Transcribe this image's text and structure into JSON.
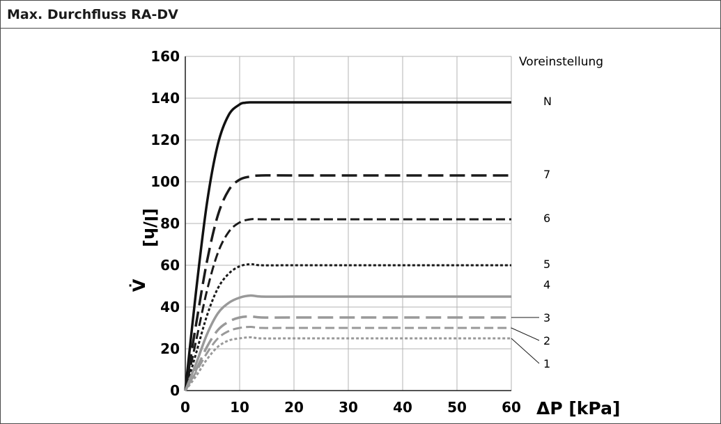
{
  "title": "Max. Durchfluss RA-DV",
  "chart_data": {
    "type": "line",
    "xlabel": "ΔP [kPa]",
    "ylabel_symbol": "V̇",
    "ylabel_unit": "[l/h]",
    "xlim": [
      0,
      60
    ],
    "ylim": [
      0,
      160
    ],
    "xticks": [
      0,
      10,
      20,
      30,
      40,
      50,
      60
    ],
    "yticks": [
      0,
      20,
      40,
      60,
      80,
      100,
      120,
      140,
      160
    ],
    "grid": true,
    "legend_title": "Voreinstellung",
    "series": [
      {
        "name": "N",
        "plateau": 138,
        "knee": 11,
        "color": "#111111",
        "dash": "solid",
        "width": 3.5,
        "x": [
          0,
          2,
          4,
          6,
          8,
          10,
          11,
          12,
          14,
          20,
          30,
          40,
          50,
          60
        ],
        "y": [
          0,
          48,
          90,
          118,
          132,
          137,
          137.8,
          138,
          138,
          138,
          138,
          138,
          138,
          138
        ]
      },
      {
        "name": "7",
        "plateau": 103,
        "knee": 11,
        "color": "#1a1a1a",
        "dash": "long-dash",
        "width": 3.5,
        "x": [
          0,
          2,
          4,
          6,
          8,
          10,
          12,
          14,
          20,
          30,
          40,
          50,
          60
        ],
        "y": [
          0,
          32,
          62,
          84,
          96,
          101,
          102.5,
          103,
          103,
          103,
          103,
          103,
          103
        ]
      },
      {
        "name": "6",
        "plateau": 82,
        "knee": 11,
        "color": "#1a1a1a",
        "dash": "medium-dash",
        "width": 3,
        "x": [
          0,
          2,
          4,
          6,
          8,
          10,
          12,
          14,
          20,
          30,
          40,
          50,
          60
        ],
        "y": [
          0,
          24,
          48,
          66,
          76,
          80.5,
          82,
          82,
          82,
          82,
          82,
          82,
          82
        ]
      },
      {
        "name": "5",
        "plateau": 60,
        "knee": 11,
        "color": "#1a1a1a",
        "dash": "dotted",
        "width": 3,
        "x": [
          0,
          2,
          4,
          6,
          8,
          10,
          12,
          14,
          20,
          30,
          40,
          50,
          60
        ],
        "y": [
          0,
          18,
          36,
          49,
          56,
          59.5,
          60.5,
          60,
          60,
          60,
          60,
          60,
          60
        ]
      },
      {
        "name": "4",
        "plateau": 45,
        "knee": 11,
        "color": "#999999",
        "dash": "solid",
        "width": 3.5,
        "x": [
          0,
          2,
          4,
          6,
          8,
          10,
          12,
          14,
          20,
          30,
          40,
          50,
          60
        ],
        "y": [
          0,
          13,
          27,
          37,
          42,
          44.5,
          45.5,
          45,
          45,
          45,
          45,
          45,
          45
        ]
      },
      {
        "name": "3",
        "plateau": 35,
        "knee": 11,
        "color": "#999999",
        "dash": "long-dash",
        "width": 3.5,
        "x": [
          0,
          2,
          4,
          6,
          8,
          10,
          12,
          14,
          20,
          30,
          40,
          50,
          60
        ],
        "y": [
          0,
          10,
          21,
          29,
          33,
          35,
          35.5,
          35,
          35,
          35,
          35,
          35,
          35
        ]
      },
      {
        "name": "2",
        "plateau": 30,
        "knee": 11,
        "color": "#999999",
        "dash": "medium-dash",
        "width": 3,
        "x": [
          0,
          2,
          4,
          6,
          8,
          10,
          12,
          14,
          20,
          30,
          40,
          50,
          60
        ],
        "y": [
          0,
          9,
          18,
          25,
          28.5,
          30,
          30.5,
          30,
          30,
          30,
          30,
          30,
          30
        ]
      },
      {
        "name": "1",
        "plateau": 25,
        "knee": 11,
        "color": "#999999",
        "dash": "dotted",
        "width": 3,
        "x": [
          0,
          2,
          4,
          6,
          8,
          10,
          12,
          14,
          20,
          30,
          40,
          50,
          60
        ],
        "y": [
          0,
          7,
          15,
          21,
          24,
          25,
          25.5,
          25,
          25,
          25,
          25,
          25,
          25
        ]
      }
    ]
  }
}
